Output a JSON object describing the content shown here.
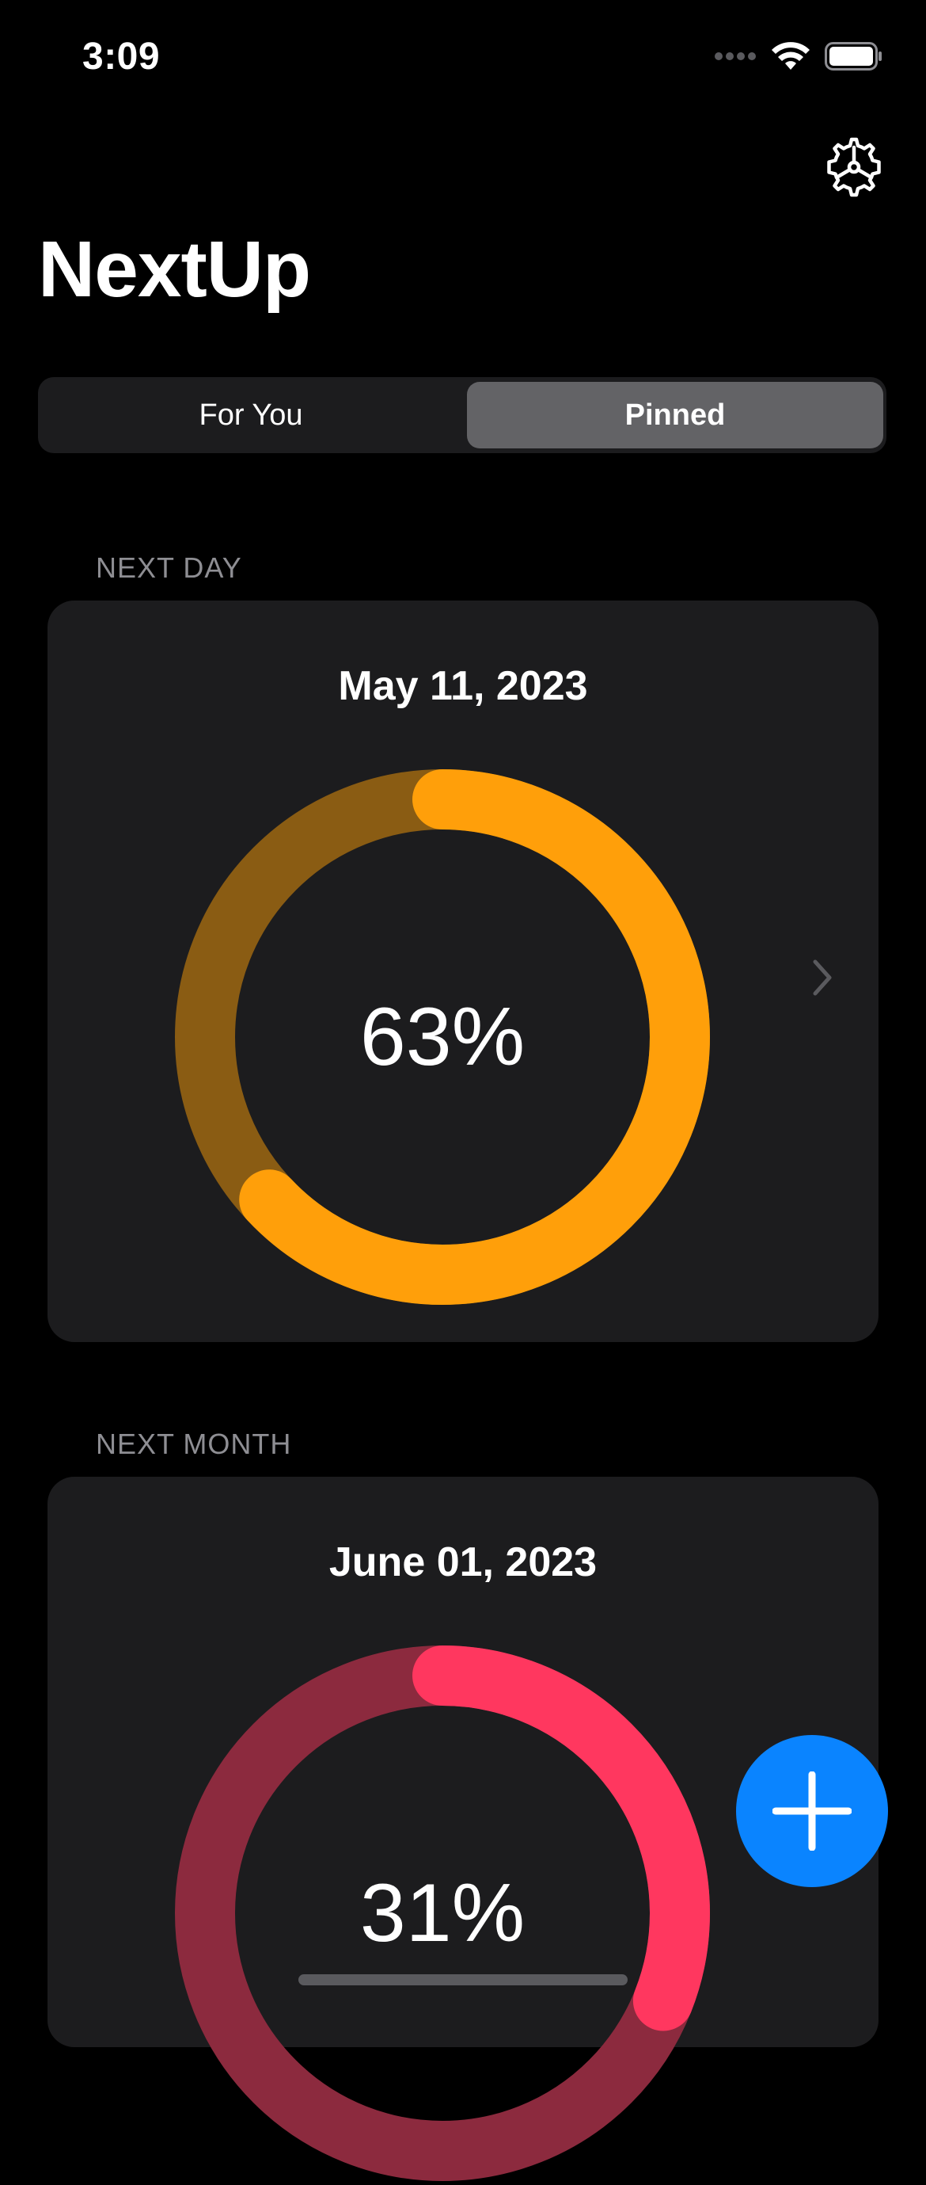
{
  "status_bar": {
    "time": "3:09",
    "icons": [
      "signal-icon",
      "wifi-icon",
      "battery-icon"
    ]
  },
  "header": {
    "title": "NextUp",
    "settings_icon": "gear-icon"
  },
  "segmented_control": {
    "options": [
      "For You",
      "Pinned"
    ],
    "selected": "Pinned"
  },
  "sections": [
    {
      "label": "NEXT DAY",
      "date": "May 11, 2023",
      "progress_label": "63%",
      "progress": 0.63,
      "color": "#ff9f0a",
      "track_color": "#8a5c13",
      "show_chevron": true
    },
    {
      "label": "NEXT MONTH",
      "date": "June 01, 2023",
      "progress_label": "31%",
      "progress": 0.31,
      "color": "#ff375f",
      "track_color": "#8c2a3e",
      "show_chevron": false
    }
  ],
  "fab": {
    "icon": "plus-icon",
    "color": "#0a84ff"
  },
  "colors": {
    "background": "#000000",
    "card": "#1c1c1e",
    "segment_selected": "#636366",
    "secondary_text": "#8e8e93"
  }
}
